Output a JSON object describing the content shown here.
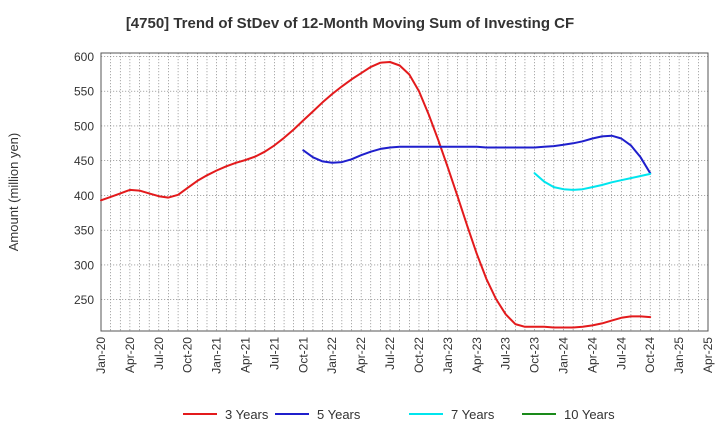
{
  "chart_data": {
    "type": "line",
    "title": "[4750]  Trend of StDev of 12-Month Moving Sum of Investing CF",
    "xlabel": "",
    "ylabel": "Amount (million yen)",
    "ylim": [
      205,
      605
    ],
    "yticks": [
      250,
      300,
      350,
      400,
      450,
      500,
      550,
      600
    ],
    "xlim": [
      "2020-01",
      "2025-04"
    ],
    "xticks": [
      "Jan-20",
      "Apr-20",
      "Jul-20",
      "Oct-20",
      "Jan-21",
      "Apr-21",
      "Jul-21",
      "Oct-21",
      "Jan-22",
      "Apr-22",
      "Jul-22",
      "Oct-22",
      "Jan-23",
      "Apr-23",
      "Jul-23",
      "Oct-23",
      "Jan-24",
      "Apr-24",
      "Jul-24",
      "Oct-24",
      "Jan-25",
      "Apr-25"
    ],
    "grid": true,
    "legend_position": "bottom",
    "series": [
      {
        "name": "3 Years",
        "color": "#e31a1c",
        "x": [
          "2020-01",
          "2020-02",
          "2020-03",
          "2020-04",
          "2020-05",
          "2020-06",
          "2020-07",
          "2020-08",
          "2020-09",
          "2020-10",
          "2020-11",
          "2020-12",
          "2021-01",
          "2021-02",
          "2021-03",
          "2021-04",
          "2021-05",
          "2021-06",
          "2021-07",
          "2021-08",
          "2021-09",
          "2021-10",
          "2021-11",
          "2021-12",
          "2022-01",
          "2022-02",
          "2022-03",
          "2022-04",
          "2022-05",
          "2022-06",
          "2022-07",
          "2022-08",
          "2022-09",
          "2022-10",
          "2022-11",
          "2022-12",
          "2023-01",
          "2023-02",
          "2023-03",
          "2023-04",
          "2023-05",
          "2023-06",
          "2023-07",
          "2023-08",
          "2023-09",
          "2023-10",
          "2023-11",
          "2023-12",
          "2024-01",
          "2024-02",
          "2024-03",
          "2024-04",
          "2024-05",
          "2024-06",
          "2024-07",
          "2024-08",
          "2024-09",
          "2024-10"
        ],
        "values": [
          393,
          398,
          403,
          408,
          407,
          403,
          399,
          397,
          401,
          411,
          421,
          429,
          436,
          442,
          447,
          451,
          456,
          463,
          472,
          483,
          495,
          508,
          521,
          534,
          546,
          557,
          567,
          576,
          585,
          591,
          592,
          587,
          574,
          550,
          517,
          480,
          440,
          399,
          357,
          316,
          280,
          251,
          229,
          215,
          211,
          211,
          211,
          210,
          210,
          210,
          211,
          213,
          216,
          220,
          224,
          226,
          226,
          225
        ]
      },
      {
        "name": "5 Years",
        "color": "#1f1fcc",
        "x": [
          "2021-10",
          "2021-11",
          "2021-12",
          "2022-01",
          "2022-02",
          "2022-03",
          "2022-04",
          "2022-05",
          "2022-06",
          "2022-07",
          "2022-08",
          "2022-09",
          "2022-10",
          "2022-11",
          "2022-12",
          "2023-01",
          "2023-02",
          "2023-03",
          "2023-04",
          "2023-05",
          "2023-06",
          "2023-07",
          "2023-08",
          "2023-09",
          "2023-10",
          "2023-11",
          "2023-12",
          "2024-01",
          "2024-02",
          "2024-03",
          "2024-04",
          "2024-05",
          "2024-06",
          "2024-07",
          "2024-08",
          "2024-09",
          "2024-10"
        ],
        "values": [
          465,
          455,
          449,
          447,
          448,
          452,
          458,
          463,
          467,
          469,
          470,
          470,
          470,
          470,
          470,
          470,
          470,
          470,
          470,
          469,
          469,
          469,
          469,
          469,
          469,
          470,
          471,
          473,
          475,
          478,
          482,
          485,
          486,
          482,
          472,
          455,
          432
        ]
      },
      {
        "name": "7 Years",
        "color": "#00e5ee",
        "x": [
          "2023-10",
          "2023-11",
          "2023-12",
          "2024-01",
          "2024-02",
          "2024-03",
          "2024-04",
          "2024-05",
          "2024-06",
          "2024-07",
          "2024-08",
          "2024-09",
          "2024-10"
        ],
        "values": [
          432,
          420,
          412,
          409,
          408,
          409,
          412,
          415,
          419,
          422,
          425,
          428,
          431
        ]
      },
      {
        "name": "10 Years",
        "color": "#1a8a1a",
        "x": [],
        "values": []
      }
    ]
  }
}
